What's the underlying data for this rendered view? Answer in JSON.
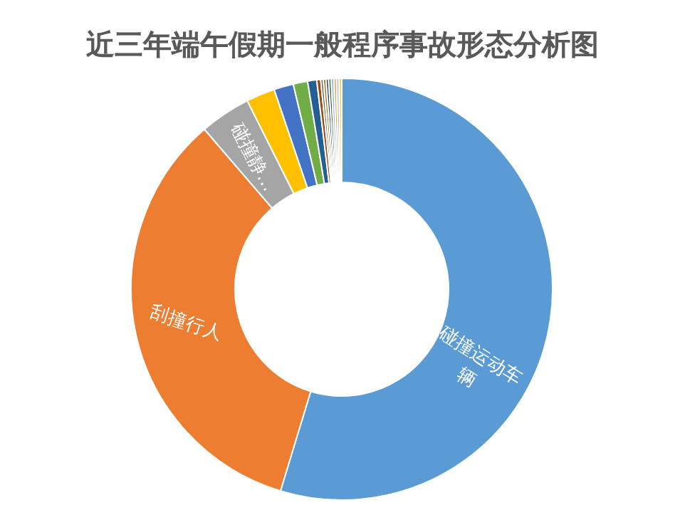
{
  "chart_data": {
    "type": "donut",
    "title": "近三年端午假期一般程序事故形态分析图",
    "categories": [
      "碰撞运动车辆",
      "刮撞行人",
      "碰撞静…",
      null,
      null,
      null,
      null,
      null,
      null,
      null,
      null,
      null,
      null,
      null,
      null,
      null
    ],
    "values": [
      54.7,
      34.0,
      3.9,
      2.2,
      1.5,
      1.1,
      0.7,
      0.3,
      0.2,
      0.2,
      0.2,
      0.2,
      0.2,
      0.2,
      0.2,
      0.2
    ],
    "colors": [
      "#5b9bd5",
      "#ed7d31",
      "#a5a5a5",
      "#ffc000",
      "#4472c4",
      "#70ad47",
      "#255e91",
      "#9e480e",
      "#636363",
      "#997300",
      "#264478",
      "#43682b",
      "#7cafdd",
      "#f1975a",
      "#b7b7b7",
      "#ffcd33"
    ]
  }
}
